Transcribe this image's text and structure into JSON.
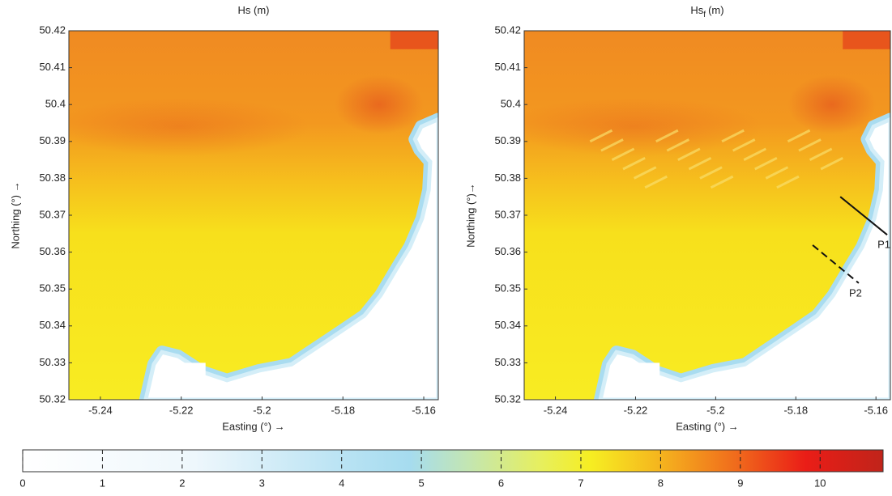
{
  "chart_data": [
    {
      "type": "heatmap",
      "title": "Hs (m)",
      "x_label": "Easting (°) →",
      "y_label": "Northing (°) →",
      "xlim": [
        -5.2478,
        -5.1564
      ],
      "ylim": [
        50.32,
        50.42
      ],
      "xticks": [
        -5.24,
        -5.22,
        -5.2,
        -5.18,
        -5.16
      ],
      "yticks": [
        50.32,
        50.33,
        50.34,
        50.35,
        50.36,
        50.37,
        50.38,
        50.39,
        50.4,
        50.41,
        50.42
      ]
    },
    {
      "type": "heatmap",
      "title": "Hs",
      "title_subscript": "f",
      "title_unit": "(m)",
      "x_label": "Easting (°) →",
      "y_label": "Northing (°)→",
      "xlim": [
        -5.2478,
        -5.1564
      ],
      "ylim": [
        50.32,
        50.42
      ],
      "xticks": [
        -5.24,
        -5.22,
        -5.2,
        -5.18,
        -5.16
      ],
      "yticks": [
        50.32,
        50.33,
        50.34,
        50.35,
        50.36,
        50.37,
        50.38,
        50.39,
        50.4,
        50.41,
        50.42
      ],
      "annotations": [
        {
          "label": "P1",
          "style": "solid",
          "x": [
            -5.1689,
            -5.1572
          ],
          "y": [
            50.375,
            50.3647
          ]
        },
        {
          "label": "P2",
          "style": "dashed",
          "x": [
            -5.1758,
            -5.1643
          ],
          "y": [
            50.3619,
            50.3516
          ]
        }
      ]
    },
    {
      "type": "colorbar",
      "lim": [
        0,
        10.79
      ],
      "ticks": [
        0,
        1,
        2,
        3,
        4,
        5,
        6,
        7,
        8,
        9,
        10
      ]
    }
  ]
}
